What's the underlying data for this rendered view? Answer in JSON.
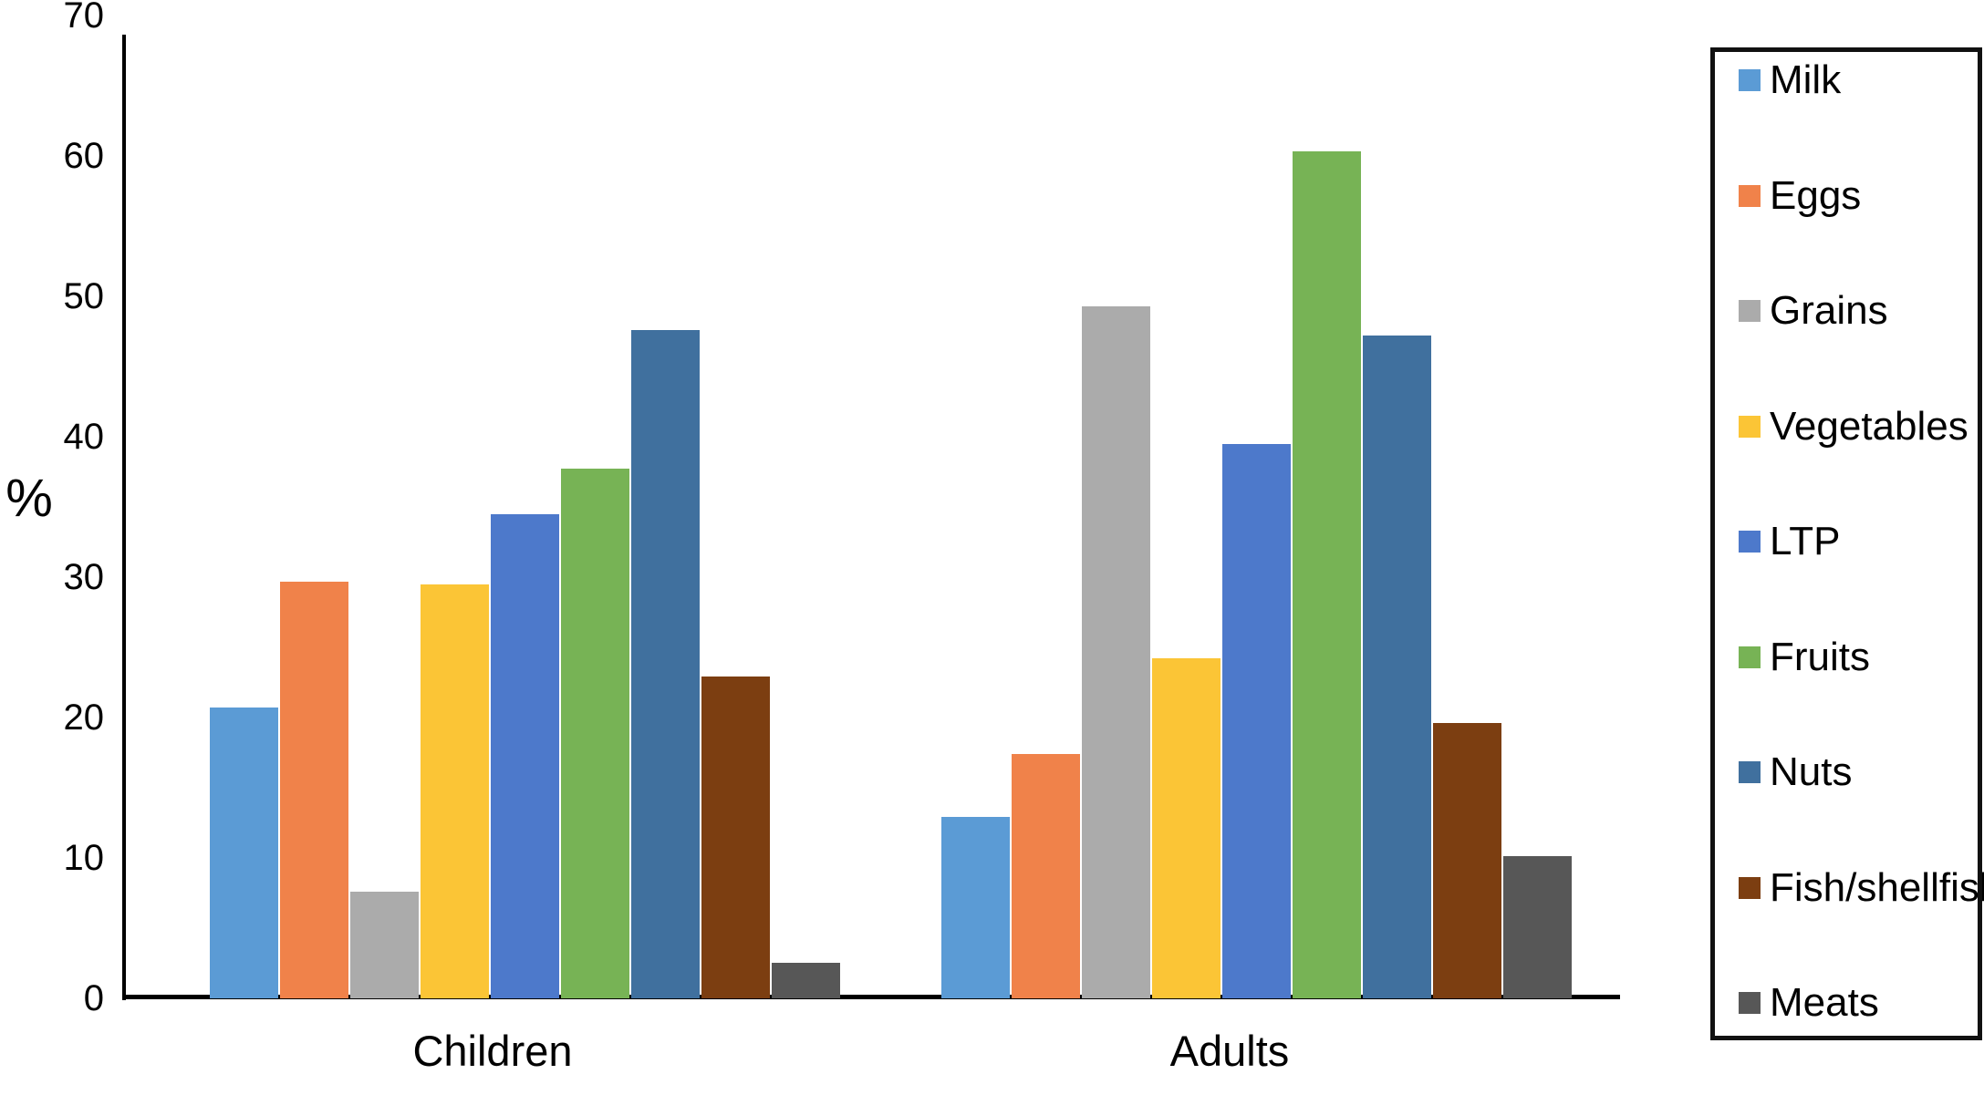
{
  "chart_data": {
    "type": "bar",
    "title": "",
    "xlabel": "",
    "ylabel": "%",
    "categories": [
      "Children",
      "Adults"
    ],
    "y_ticks": [
      0,
      10,
      20,
      30,
      40,
      50,
      60,
      70
    ],
    "ylim": [
      0,
      70
    ],
    "grid": false,
    "legend_position": "right",
    "series": [
      {
        "name": "Milk",
        "color": "#5B9BD5",
        "values": [
          20.7,
          12.9
        ]
      },
      {
        "name": "Eggs",
        "color": "#F0824A",
        "values": [
          29.7,
          17.4
        ]
      },
      {
        "name": "Grains",
        "color": "#ABABAB",
        "values": [
          7.6,
          49.3
        ]
      },
      {
        "name": "Vegetables",
        "color": "#FBC536",
        "values": [
          29.5,
          24.2
        ]
      },
      {
        "name": "LTP",
        "color": "#4D79CB",
        "values": [
          34.5,
          39.5
        ]
      },
      {
        "name": "Fruits",
        "color": "#77B355",
        "values": [
          37.7,
          60.3
        ]
      },
      {
        "name": "Nuts",
        "color": "#40709E",
        "values": [
          47.6,
          47.2
        ]
      },
      {
        "name": "Fish/shellfish",
        "color": "#7C3E11",
        "values": [
          22.9,
          19.6
        ]
      },
      {
        "name": "Meats",
        "color": "#575757",
        "values": [
          2.5,
          10.1
        ]
      }
    ]
  }
}
